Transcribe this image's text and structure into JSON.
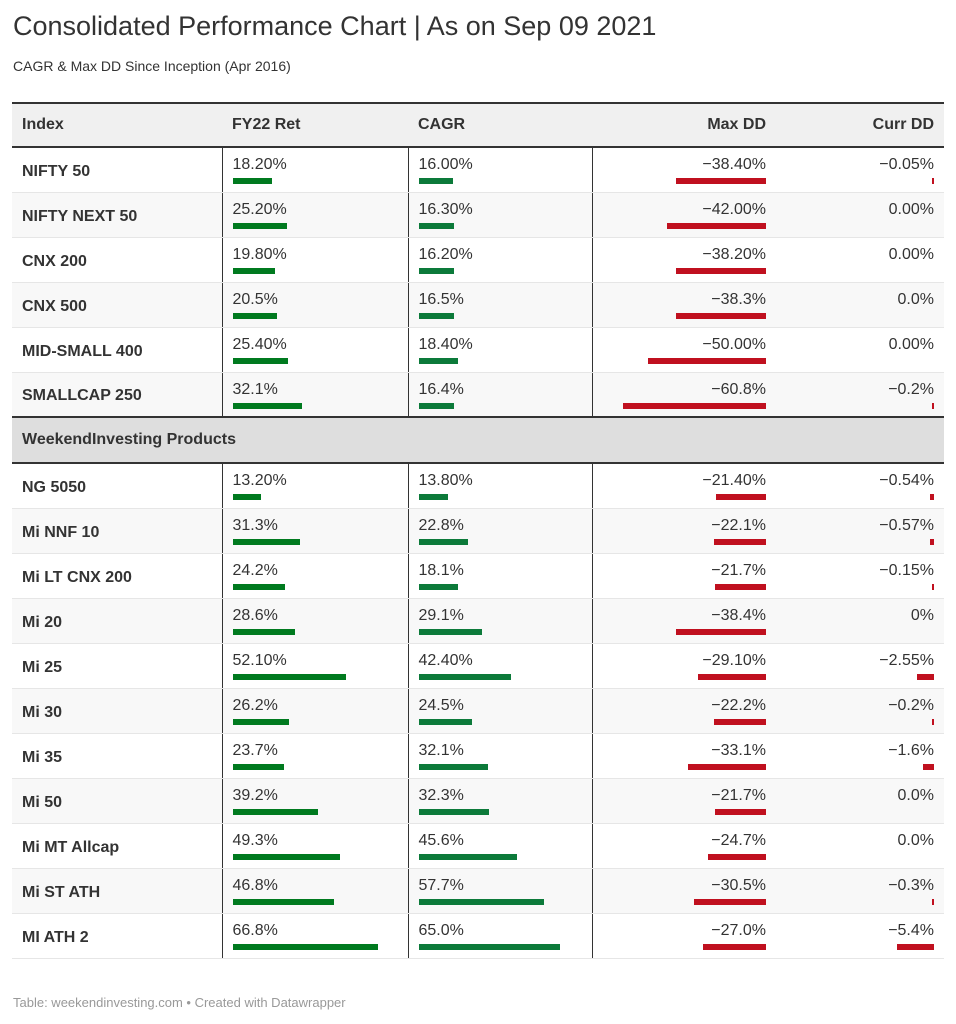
{
  "header": {
    "title": "Consolidated Performance Chart | As on Sep 09 2021",
    "subtitle": "CAGR & Max DD Since Inception (Apr 2016)"
  },
  "footer": "Table: weekendinvesting.com • Created with Datawrapper",
  "colors": {
    "positive": "#007a1f",
    "negative": "#c0101f",
    "cagr": "#0c7a3a"
  },
  "chart_data": {
    "type": "table",
    "columns": [
      "Index",
      "FY22 Ret",
      "CAGR",
      "Max DD",
      "Curr DD"
    ],
    "groups": [
      {
        "name": "",
        "rows": [
          {
            "name": "NIFTY 50",
            "fy22": "18.20%",
            "cagr": "16.00%",
            "maxdd": "−38.40%",
            "currdd": "−0.05%",
            "v": [
              18.2,
              16.0,
              -38.4,
              -0.05
            ]
          },
          {
            "name": "NIFTY NEXT 50",
            "fy22": "25.20%",
            "cagr": "16.30%",
            "maxdd": "−42.00%",
            "currdd": "0.00%",
            "v": [
              25.2,
              16.3,
              -42.0,
              0
            ]
          },
          {
            "name": "CNX 200",
            "fy22": "19.80%",
            "cagr": "16.20%",
            "maxdd": "−38.20%",
            "currdd": "0.00%",
            "v": [
              19.8,
              16.2,
              -38.2,
              0
            ]
          },
          {
            "name": "CNX 500",
            "fy22": "20.5%",
            "cagr": "16.5%",
            "maxdd": "−38.3%",
            "currdd": "0.0%",
            "v": [
              20.5,
              16.5,
              -38.3,
              0
            ]
          },
          {
            "name": "MID-SMALL 400",
            "fy22": "25.40%",
            "cagr": "18.40%",
            "maxdd": "−50.00%",
            "currdd": "0.00%",
            "v": [
              25.4,
              18.4,
              -50.0,
              0
            ]
          },
          {
            "name": "SMALLCAP 250",
            "fy22": "32.1%",
            "cagr": "16.4%",
            "maxdd": "−60.8%",
            "currdd": "−0.2%",
            "v": [
              32.1,
              16.4,
              -60.8,
              -0.2
            ]
          }
        ]
      },
      {
        "name": "WeekendInvesting Products",
        "rows": [
          {
            "name": "NG 5050",
            "fy22": "13.20%",
            "cagr": "13.80%",
            "maxdd": "−21.40%",
            "currdd": "−0.54%",
            "v": [
              13.2,
              13.8,
              -21.4,
              -0.54
            ]
          },
          {
            "name": "Mi NNF 10",
            "fy22": "31.3%",
            "cagr": "22.8%",
            "maxdd": "−22.1%",
            "currdd": "−0.57%",
            "v": [
              31.3,
              22.8,
              -22.1,
              -0.57
            ]
          },
          {
            "name": "Mi LT CNX 200",
            "fy22": "24.2%",
            "cagr": "18.1%",
            "maxdd": "−21.7%",
            "currdd": "−0.15%",
            "v": [
              24.2,
              18.1,
              -21.7,
              -0.15
            ]
          },
          {
            "name": "Mi 20",
            "fy22": "28.6%",
            "cagr": "29.1%",
            "maxdd": "−38.4%",
            "currdd": "0%",
            "v": [
              28.6,
              29.1,
              -38.4,
              0
            ]
          },
          {
            "name": "Mi 25",
            "fy22": "52.10%",
            "cagr": "42.40%",
            "maxdd": "−29.10%",
            "currdd": "−2.55%",
            "v": [
              52.1,
              42.4,
              -29.1,
              -2.55
            ]
          },
          {
            "name": "Mi 30",
            "fy22": "26.2%",
            "cagr": "24.5%",
            "maxdd": "−22.2%",
            "currdd": "−0.2%",
            "v": [
              26.2,
              24.5,
              -22.2,
              -0.2
            ]
          },
          {
            "name": "Mi 35",
            "fy22": "23.7%",
            "cagr": "32.1%",
            "maxdd": "−33.1%",
            "currdd": "−1.6%",
            "v": [
              23.7,
              32.1,
              -33.1,
              -1.6
            ]
          },
          {
            "name": "Mi 50",
            "fy22": "39.2%",
            "cagr": "32.3%",
            "maxdd": "−21.7%",
            "currdd": "0.0%",
            "v": [
              39.2,
              32.3,
              -21.7,
              0
            ]
          },
          {
            "name": "Mi MT Allcap",
            "fy22": "49.3%",
            "cagr": "45.6%",
            "maxdd": "−24.7%",
            "currdd": "0.0%",
            "v": [
              49.3,
              45.6,
              -24.7,
              0
            ]
          },
          {
            "name": "Mi ST ATH",
            "fy22": "46.8%",
            "cagr": "57.7%",
            "maxdd": "−30.5%",
            "currdd": "−0.3%",
            "v": [
              46.8,
              57.7,
              -30.5,
              -0.3
            ]
          },
          {
            "name": "MI ATH 2",
            "fy22": "66.8%",
            "cagr": "65.0%",
            "maxdd": "−27.0%",
            "currdd": "−5.4%",
            "v": [
              66.8,
              65.0,
              -27.0,
              -5.4
            ]
          }
        ]
      }
    ]
  }
}
